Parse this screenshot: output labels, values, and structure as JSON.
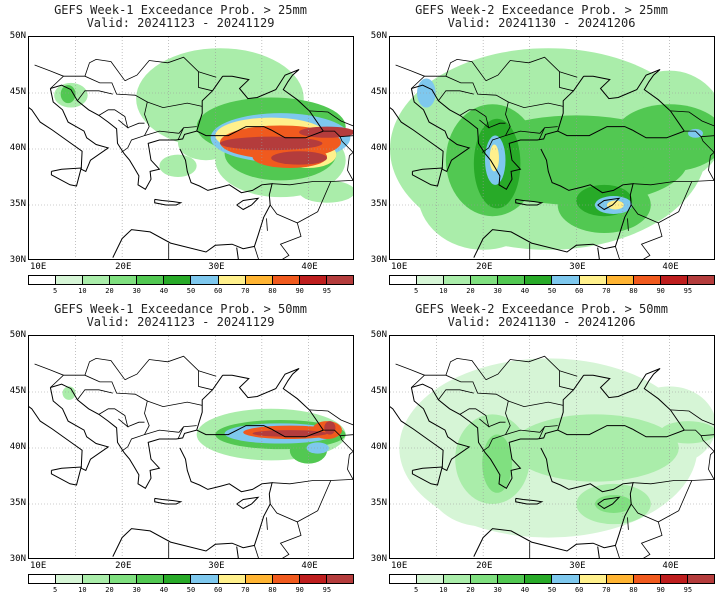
{
  "panels": [
    {
      "title": "GEFS Week-1 Exceedance Prob. > 25mm",
      "valid": "Valid: 20241123 - 20241129",
      "level": "high25"
    },
    {
      "title": "GEFS Week-2 Exceedance Prob. > 25mm",
      "valid": "Valid: 20241130 - 20241206",
      "level": "wide25"
    },
    {
      "title": "GEFS Week-1 Exceedance Prob. > 50mm",
      "valid": "Valid: 20241123 - 20241129",
      "level": "high50"
    },
    {
      "title": "GEFS Week-2 Exceedance Prob. > 50mm",
      "valid": "Valid: 20241130 - 20241206",
      "level": "wide50"
    }
  ],
  "axes": {
    "lat_labels": [
      "50N",
      "45N",
      "40N",
      "35N",
      "30N"
    ],
    "lon_labels": [
      "10E",
      "20E",
      "30E",
      "40E"
    ]
  },
  "colorbar": {
    "labels": [
      "5",
      "10",
      "20",
      "30",
      "40",
      "50",
      "60",
      "70",
      "80",
      "90",
      "95"
    ],
    "colors": [
      "#ffffff",
      "#d6f5d6",
      "#aaedaa",
      "#80e080",
      "#52c852",
      "#28aa28",
      "#7ec8ee",
      "#fff08c",
      "#ffb432",
      "#f05a1e",
      "#be1e1e",
      "#b43c3c"
    ]
  }
}
